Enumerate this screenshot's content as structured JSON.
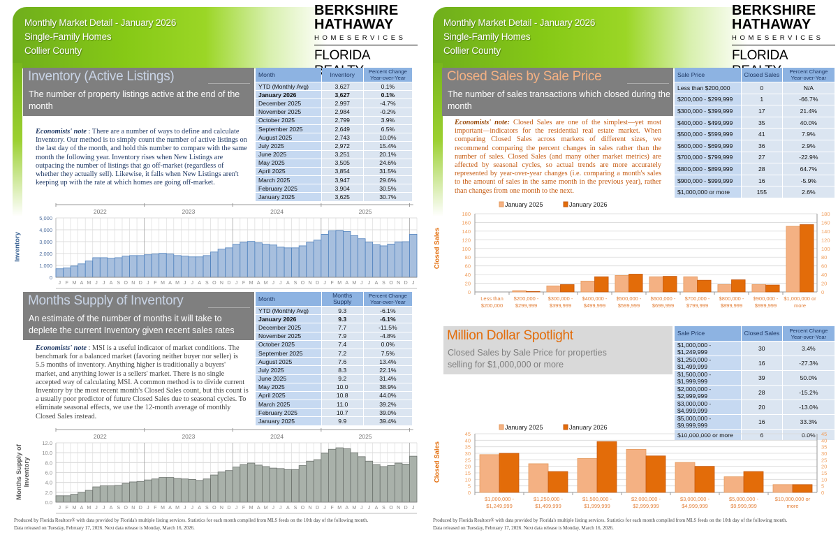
{
  "header": {
    "title": "Monthly Market Detail - January 2026",
    "property_type": "Single-Family Homes",
    "area": "Collier County"
  },
  "logo": {
    "line1": "BERKSHIRE",
    "line2": "HATHAWAY",
    "line3": "HOMESERVICES",
    "line4": "FLORIDA REALTY"
  },
  "colors": {
    "green": "#86c916",
    "blue_bar": "#95b3d7",
    "gray_bar": "#a5aca5",
    "orange_light": "#f4b183",
    "orange_dark": "#e36c09",
    "table_header": "#8db3e2"
  },
  "inventory": {
    "title": "Inventory (Active Listings)",
    "subtitle": "The number of property listings active at the end of the month",
    "note_label": "Economists' note",
    "note": " :  There are a number of ways to define and calculate Inventory.  Our method is to simply count the number of active listings on the last day of the month, and hold this number to compare with the same month the following year.  Inventory rises when New Listings are outpacing the number of listings that go off-market (regardless of whether they actually sell).  Likewise, it falls when New Listings aren't keeping up with the rate at which homes are going off-market.",
    "table": {
      "headers": [
        "Month",
        "Inventory",
        "Percent Change Year-over-Year"
      ],
      "rows": [
        [
          "YTD (Monthly Avg)",
          "3,627",
          "0.1%"
        ],
        [
          "January 2026",
          "3,627",
          "0.1%"
        ],
        [
          "December 2025",
          "2,997",
          "-4.7%"
        ],
        [
          "November 2025",
          "2,984",
          "-0.2%"
        ],
        [
          "October 2025",
          "2,799",
          "3.9%"
        ],
        [
          "September 2025",
          "2,649",
          "6.5%"
        ],
        [
          "August 2025",
          "2,743",
          "10.0%"
        ],
        [
          "July 2025",
          "2,972",
          "15.4%"
        ],
        [
          "June 2025",
          "3,251",
          "20.1%"
        ],
        [
          "May 2025",
          "3,505",
          "24.6%"
        ],
        [
          "April 2025",
          "3,854",
          "31.5%"
        ],
        [
          "March 2025",
          "3,947",
          "29.6%"
        ],
        [
          "February 2025",
          "3,904",
          "30.5%"
        ],
        [
          "January 2025",
          "3,625",
          "30.7%"
        ]
      ]
    }
  },
  "msi": {
    "title": "Months Supply of Inventory",
    "subtitle": "An estimate of the number of months it will take to deplete the current Inventory given recent sales rates",
    "note_label": "Economists' note",
    "note": " :  MSI is a useful indicator of market conditions.  The benchmark for a balanced market (favoring neither buyer nor seller) is 5.5 months of inventory.  Anything higher is traditionally a buyers' market, and anything lower is a sellers' market.  There is no single accepted way of calculating MSI.  A common method is to divide current Inventory by the most recent month's Closed Sales count, but this count is a usually poor predictor of future Closed Sales due to seasonal cycles.  To eliminate seasonal effects, we use the 12-month average of monthly Closed Sales instead.",
    "table": {
      "headers": [
        "Month",
        "Months Supply",
        "Percent Change Year-over-Year"
      ],
      "rows": [
        [
          "YTD (Monthly Avg)",
          "9.3",
          "-6.1%"
        ],
        [
          "January 2026",
          "9.3",
          "-6.1%"
        ],
        [
          "December 2025",
          "7.7",
          "-11.5%"
        ],
        [
          "November 2025",
          "7.9",
          "-4.8%"
        ],
        [
          "October 2025",
          "7.4",
          "0.0%"
        ],
        [
          "September 2025",
          "7.2",
          "7.5%"
        ],
        [
          "August 2025",
          "7.6",
          "13.4%"
        ],
        [
          "July 2025",
          "8.3",
          "22.1%"
        ],
        [
          "June 2025",
          "9.2",
          "31.4%"
        ],
        [
          "May 2025",
          "10.0",
          "38.9%"
        ],
        [
          "April 2025",
          "10.8",
          "44.0%"
        ],
        [
          "March 2025",
          "11.0",
          "39.2%"
        ],
        [
          "February 2025",
          "10.7",
          "39.0%"
        ],
        [
          "January 2025",
          "9.9",
          "39.4%"
        ]
      ]
    }
  },
  "closed_sales": {
    "title": "Closed Sales by Sale Price",
    "subtitle": "The number of sales transactions which closed during the month",
    "note_label": "Economists' note:",
    "note": "  Closed Sales are one of the simplest—yet most important—indicators for the residential real estate market. When comparing Closed Sales across markets of different sizes, we recommend comparing the percent changes in sales rather than the number of sales. Closed Sales (and many other market metrics) are affected by seasonal cycles, so actual trends are more accurately represented by year-over-year changes (i.e. comparing a month's sales to the amount of sales in the same month in the previous year), rather than changes from one month to the next.",
    "table": {
      "headers": [
        "Sale Price",
        "Closed Sales",
        "Percent Change Year-over-Year"
      ],
      "rows": [
        [
          "Less than $200,000",
          "0",
          "N/A"
        ],
        [
          "$200,000 - $299,999",
          "1",
          "-66.7%"
        ],
        [
          "$300,000 - $399,999",
          "17",
          "21.4%"
        ],
        [
          "$400,000 - $499,999",
          "35",
          "40.0%"
        ],
        [
          "$500,000 - $599,999",
          "41",
          "7.9%"
        ],
        [
          "$600,000 - $699,999",
          "36",
          "2.9%"
        ],
        [
          "$700,000 - $799,999",
          "27",
          "-22.9%"
        ],
        [
          "$800,000 - $899,999",
          "28",
          "64.7%"
        ],
        [
          "$900,000 - $999,999",
          "16",
          "-5.9%"
        ],
        [
          "$1,000,000 or more",
          "155",
          "2.6%"
        ]
      ]
    }
  },
  "million": {
    "title": "Million Dollar Spotlight",
    "subtitle": "Closed Sales by Sale Price for properties selling for $1,000,000 or more",
    "table": {
      "headers": [
        "Sale Price",
        "Closed Sales",
        "Percent Change Year-over-Year"
      ],
      "rows": [
        [
          "$1,000,000 - $1,249,999",
          "30",
          "3.4%"
        ],
        [
          "$1,250,000 - $1,499,999",
          "16",
          "-27.3%"
        ],
        [
          "$1,500,000 - $1,999,999",
          "39",
          "50.0%"
        ],
        [
          "$2,000,000 - $2,999,999",
          "28",
          "-15.2%"
        ],
        [
          "$3,000,000 - $4,999,999",
          "20",
          "-13.0%"
        ],
        [
          "$5,000,000 - $9,999,999",
          "16",
          "33.3%"
        ],
        [
          "$10,000,000 or more",
          "6",
          "0.0%"
        ]
      ]
    }
  },
  "footer": {
    "line1": "Produced by Florida Realtors® with data provided by Florida's multiple listing services. Statistics for each month compiled from MLS feeds on the 10th day of the following month.",
    "line2": "Data released on Tuesday, February 17, 2026. Next data release is Monday, March 16, 2026."
  },
  "chart_data": [
    {
      "type": "bar",
      "ylabel": "Inventory",
      "ylim": [
        0,
        5000
      ],
      "yticks": [
        "0",
        "1,000",
        "2,000",
        "3,000",
        "4,000",
        "5,000"
      ],
      "year_labels": [
        "2022",
        "2023",
        "2024",
        "2025"
      ],
      "x_tick_labels": [
        "J",
        "F",
        "M",
        "A",
        "M",
        "J",
        "J",
        "A",
        "S",
        "O",
        "N",
        "D",
        "J",
        "F",
        "M",
        "A",
        "M",
        "J",
        "J",
        "A",
        "S",
        "O",
        "N",
        "D",
        "J",
        "F",
        "M",
        "A",
        "M",
        "J",
        "J",
        "A",
        "S",
        "O",
        "N",
        "D",
        "J",
        "F",
        "M",
        "A",
        "M",
        "J",
        "J",
        "A",
        "S",
        "O",
        "N",
        "D",
        "J"
      ],
      "values": [
        720,
        780,
        950,
        1130,
        1370,
        1650,
        1650,
        1600,
        1650,
        1780,
        1830,
        1830,
        1900,
        1960,
        2020,
        1960,
        1830,
        1780,
        1720,
        1720,
        1830,
        2130,
        2370,
        2480,
        2780,
        2960,
        3020,
        2900,
        2780,
        2720,
        2540,
        2480,
        2480,
        2650,
        2960,
        3130,
        3625,
        3904,
        3947,
        3854,
        3505,
        3251,
        2972,
        2743,
        2649,
        2799,
        2984,
        2997,
        3627
      ],
      "grid": true
    },
    {
      "type": "bar",
      "ylabel": "Months Supply of Inventory",
      "ylim": [
        0,
        12
      ],
      "yticks": [
        "0.0",
        "2.0",
        "4.0",
        "6.0",
        "8.0",
        "10.0",
        "12.0"
      ],
      "year_labels": [
        "2022",
        "2023",
        "2024",
        "2025"
      ],
      "x_tick_labels": [
        "J",
        "F",
        "M",
        "A",
        "M",
        "J",
        "J",
        "A",
        "S",
        "O",
        "N",
        "D",
        "J",
        "F",
        "M",
        "A",
        "M",
        "J",
        "J",
        "A",
        "S",
        "O",
        "N",
        "D",
        "J",
        "F",
        "M",
        "A",
        "M",
        "J",
        "J",
        "A",
        "S",
        "O",
        "N",
        "D",
        "J",
        "F",
        "M",
        "A",
        "M",
        "J",
        "J",
        "A",
        "S",
        "O",
        "N",
        "D",
        "J"
      ],
      "values": [
        1.3,
        1.3,
        1.6,
        2.0,
        2.4,
        3.1,
        3.3,
        3.3,
        3.4,
        3.8,
        4.1,
        4.2,
        4.5,
        4.7,
        5.0,
        5.0,
        4.8,
        4.7,
        4.6,
        4.4,
        4.7,
        5.5,
        6.1,
        6.4,
        7.1,
        7.6,
        7.9,
        7.5,
        7.2,
        6.9,
        6.8,
        6.6,
        6.6,
        7.4,
        8.3,
        8.6,
        9.9,
        10.7,
        11.0,
        10.8,
        10.0,
        9.2,
        8.3,
        7.6,
        7.2,
        7.4,
        7.9,
        7.7,
        9.3
      ],
      "grid": true
    },
    {
      "type": "bar",
      "ylabel": "Closed Sales",
      "ylim": [
        0,
        180
      ],
      "yticks": [
        "0",
        "20",
        "40",
        "60",
        "80",
        "100",
        "120",
        "140",
        "160",
        "180"
      ],
      "categories": [
        [
          "Less than",
          "$200,000"
        ],
        [
          "$200,000 -",
          "$299,999"
        ],
        [
          "$300,000 -",
          "$399,999"
        ],
        [
          "$400,000 -",
          "$499,999"
        ],
        [
          "$500,000 -",
          "$599,999"
        ],
        [
          "$600,000 -",
          "$699,999"
        ],
        [
          "$700,000 -",
          "$799,999"
        ],
        [
          "$800,000 -",
          "$899,999"
        ],
        [
          "$900,000 -",
          "$999,999"
        ],
        [
          "$1,000,000 or",
          "more"
        ]
      ],
      "series": [
        {
          "name": "January 2025",
          "values": [
            0,
            3,
            14,
            25,
            38,
            35,
            35,
            17,
            17,
            151
          ]
        },
        {
          "name": "January 2026",
          "values": [
            0,
            1,
            17,
            35,
            41,
            36,
            27,
            28,
            16,
            155
          ]
        }
      ],
      "legend": "top-left"
    },
    {
      "type": "bar",
      "ylabel": "Closed Sales",
      "ylim": [
        0,
        45
      ],
      "yticks": [
        "0",
        "5",
        "10",
        "15",
        "20",
        "25",
        "30",
        "35",
        "40",
        "45"
      ],
      "categories": [
        [
          "$1,000,000 -",
          "$1,249,999"
        ],
        [
          "$1,250,000 -",
          "$1,499,999"
        ],
        [
          "$1,500,000 -",
          "$1,999,999"
        ],
        [
          "$2,000,000 -",
          "$2,999,999"
        ],
        [
          "$3,000,000 -",
          "$4,999,999"
        ],
        [
          "$5,000,000 -",
          "$9,999,999"
        ],
        [
          "$10,000,000 or",
          "more"
        ]
      ],
      "series": [
        {
          "name": "January 2025",
          "values": [
            29,
            22,
            26,
            33,
            23,
            12,
            6
          ]
        },
        {
          "name": "January 2026",
          "values": [
            30,
            16,
            39,
            28,
            20,
            16,
            6
          ]
        }
      ],
      "legend": "top-left"
    }
  ]
}
